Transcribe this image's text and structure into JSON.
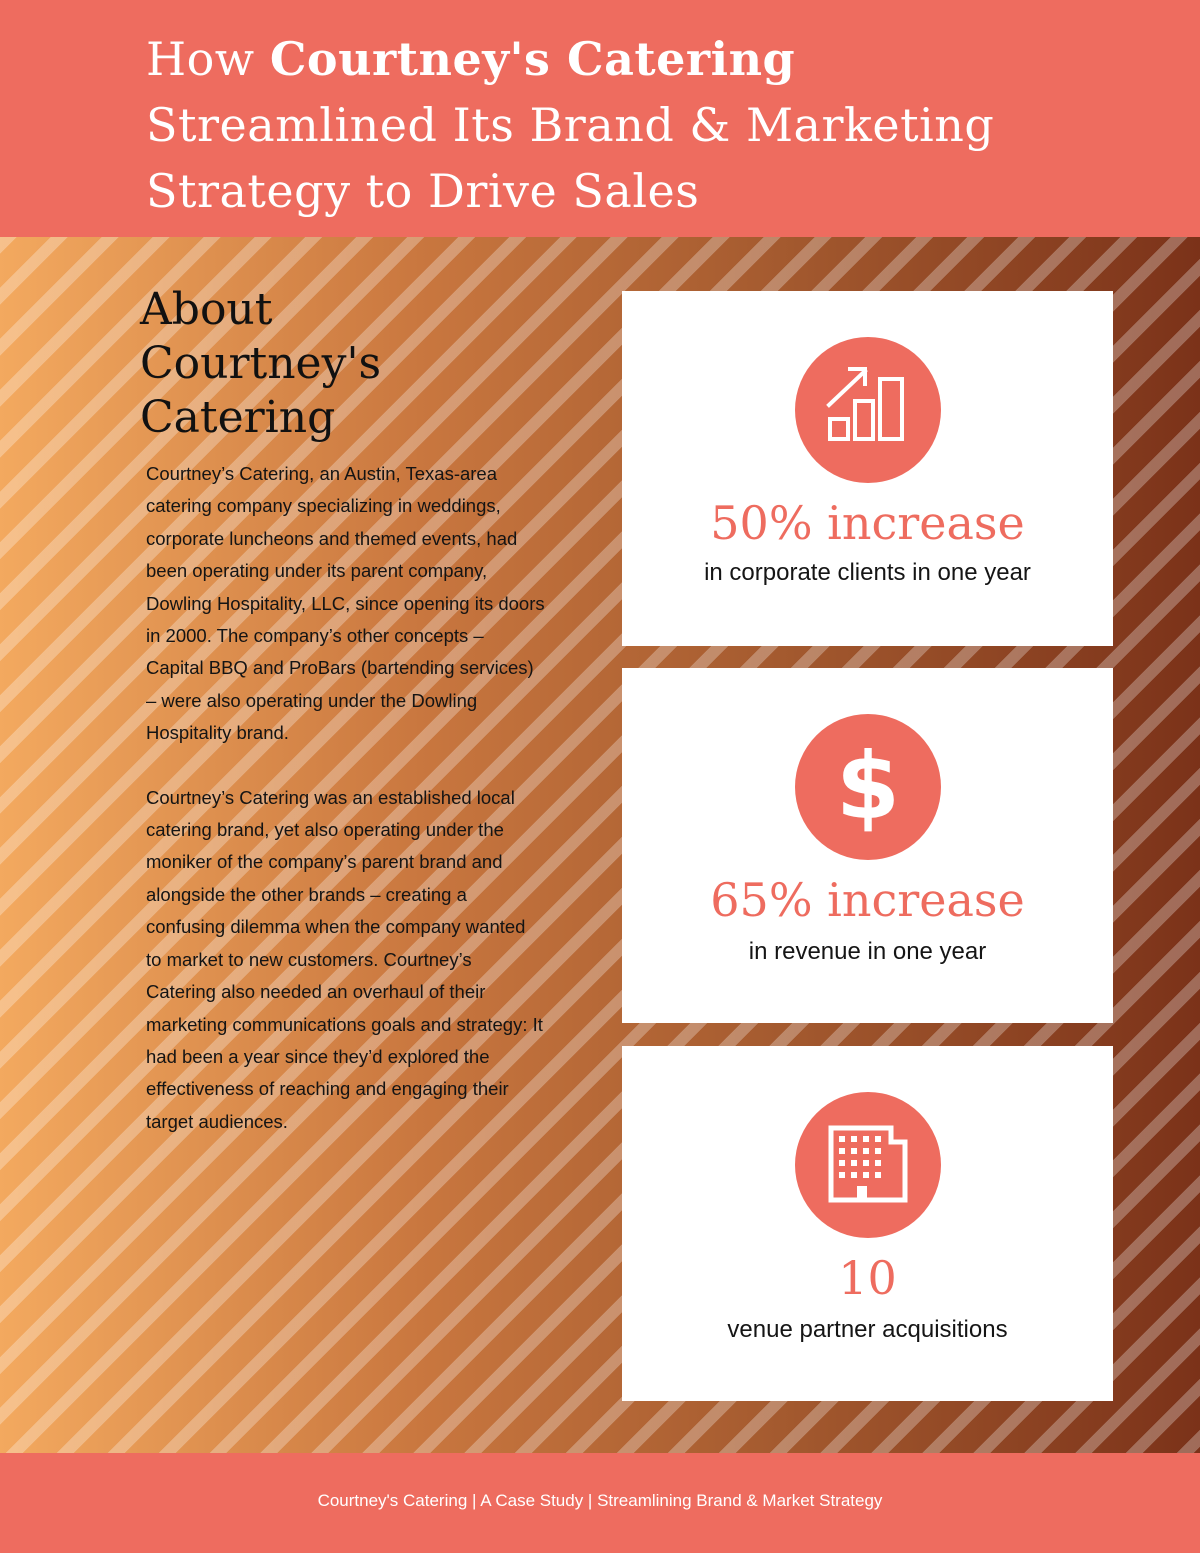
{
  "header": {
    "title_pre": "How ",
    "title_bold": "Courtney's Catering",
    "title_line2": "Streamlined Its Brand &  Marketing",
    "title_line3": "Strategy to Drive Sales"
  },
  "about": {
    "heading_lines": [
      "About",
      "Courtney's",
      "Catering"
    ],
    "paragraphs": [
      "Courtney’s Catering, an Austin, Texas-area catering company specializing in weddings, corporate luncheons and themed events, had been operating under its parent company, Dowling Hospitality, LLC, since opening its doors in 2000. The company’s other concepts – Capital BBQ and ProBars (bartending services) – were also operating under the Dowling Hospitality brand.",
      "Courtney’s Catering was an established local catering brand, yet also operating under the moniker of the company’s parent brand and alongside the other brands – creating a confusing dilemma when the company wanted to market to new customers. Courtney’s Catering also needed an overhaul of their marketing communications goals and strategy: It had been a year since they’d explored the effectiveness of reaching and engaging their target audiences."
    ]
  },
  "stats": [
    {
      "icon": "growth-chart-icon",
      "value": "50% increase",
      "label": "in corporate clients in one year"
    },
    {
      "icon": "dollar-icon",
      "value": "65% increase",
      "label": "in revenue in one year"
    },
    {
      "icon": "building-icon",
      "value": "10",
      "label": "venue partner acquisitions"
    }
  ],
  "footer": {
    "text": "Courtney's Catering | A Case Study | Streamlining Brand & Market Strategy"
  },
  "colors": {
    "accent": "#ee6c5f",
    "gradient_start": "#f3a95f",
    "gradient_end": "#7b3219"
  }
}
